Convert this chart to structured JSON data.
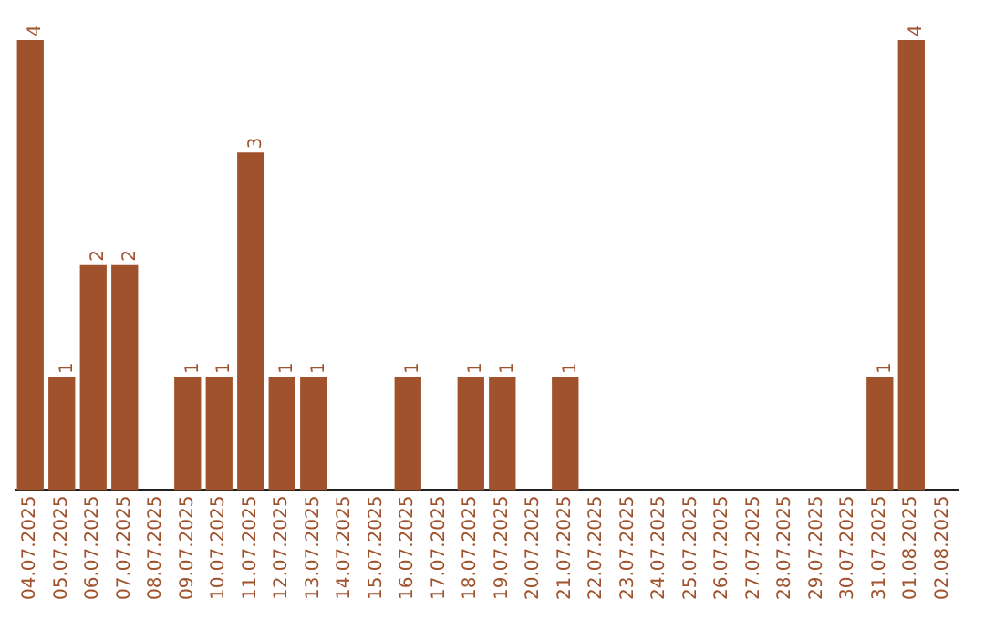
{
  "chart_data": {
    "type": "bar",
    "categories": [
      "04.07.2025",
      "05.07.2025",
      "06.07.2025",
      "07.07.2025",
      "08.07.2025",
      "09.07.2025",
      "10.07.2025",
      "11.07.2025",
      "12.07.2025",
      "13.07.2025",
      "14.07.2025",
      "15.07.2025",
      "16.07.2025",
      "17.07.2025",
      "18.07.2025",
      "19.07.2025",
      "20.07.2025",
      "21.07.2025",
      "22.07.2025",
      "23.07.2025",
      "24.07.2025",
      "25.07.2025",
      "26.07.2025",
      "27.07.2025",
      "28.07.2025",
      "29.07.2025",
      "30.07.2025",
      "31.07.2025",
      "01.08.2025",
      "02.08.2025"
    ],
    "values": [
      4,
      1,
      2,
      2,
      0,
      1,
      1,
      3,
      1,
      1,
      0,
      0,
      1,
      0,
      1,
      1,
      0,
      1,
      0,
      0,
      0,
      0,
      0,
      0,
      0,
      0,
      0,
      1,
      4,
      0
    ],
    "value_labels": [
      "4",
      "1",
      "2",
      "2",
      null,
      "1",
      "1",
      "3",
      "1",
      "1",
      null,
      null,
      "1",
      null,
      "1",
      "1",
      null,
      "1",
      null,
      null,
      null,
      null,
      null,
      null,
      null,
      null,
      null,
      "1",
      "4",
      null
    ],
    "color": "#a0522d",
    "tick_labels": "x",
    "grid": false,
    "legend": false
  }
}
